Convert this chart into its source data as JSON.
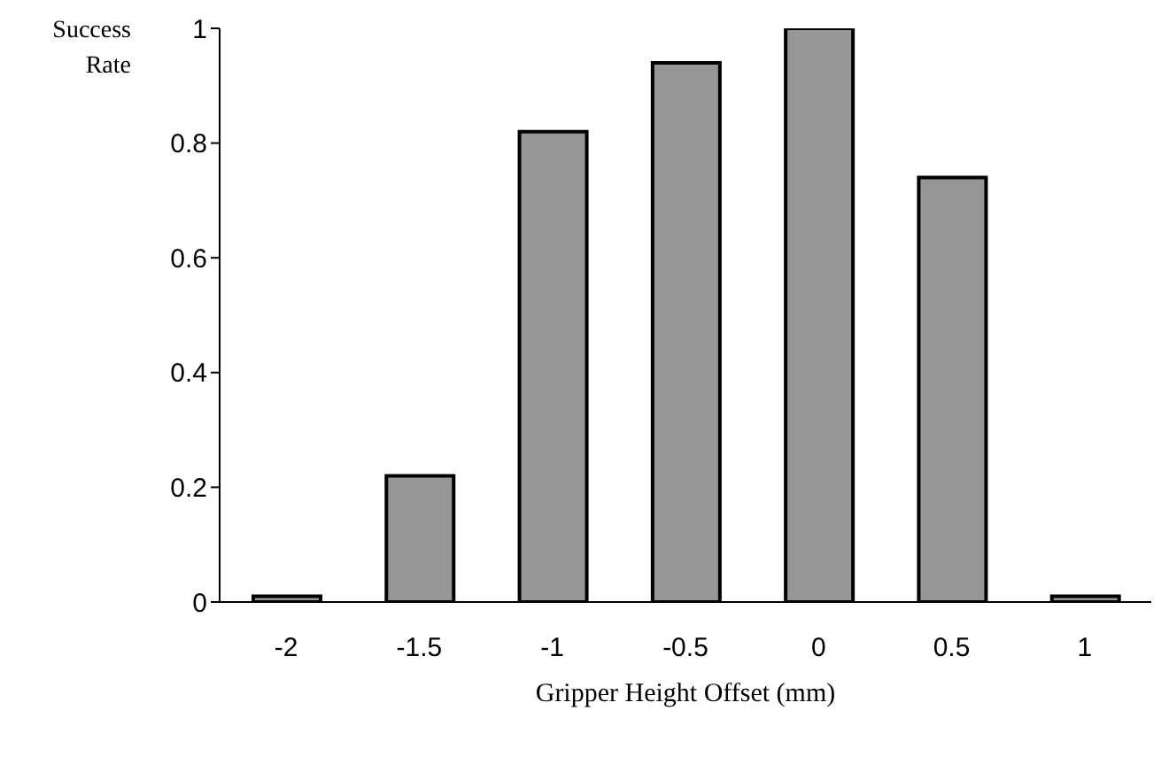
{
  "chart_data": {
    "type": "bar",
    "xlabel": "Gripper Height Offset (mm)",
    "ylabel": "Success Rate",
    "categories": [
      "-2",
      "-1.5",
      "-1",
      "-0.5",
      "0",
      "0.5",
      "1"
    ],
    "values": [
      0.01,
      0.22,
      0.82,
      0.94,
      1,
      0.74,
      0.01
    ],
    "color": "#969696",
    "ylim": [
      0,
      1
    ],
    "yticks": [
      0,
      0.2,
      0.4,
      0.6,
      0.8,
      1
    ],
    "grid": false
  }
}
